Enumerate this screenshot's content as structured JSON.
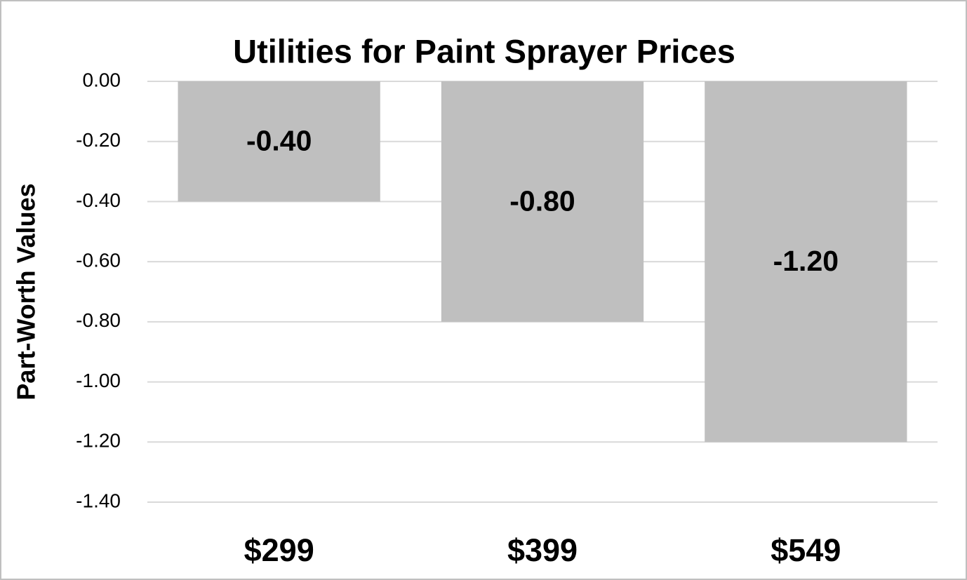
{
  "chart_data": {
    "type": "bar",
    "title": "Utilities for Paint Sprayer Prices",
    "y_label": "Part-Worth Values",
    "categories": [
      "$299",
      "$399",
      "$549"
    ],
    "values": [
      -0.4,
      -0.8,
      -1.2
    ],
    "value_labels": [
      "-0.40",
      "-0.80",
      "-1.20"
    ],
    "color": "#bfbfbf",
    "ylim": [
      -1.4,
      0
    ],
    "yticks": [
      {
        "value": 0,
        "label": "0.00"
      },
      {
        "value": -0.2,
        "label": "-0.20"
      },
      {
        "value": -0.4,
        "label": "-0.40"
      },
      {
        "value": -0.6,
        "label": "-0.60"
      },
      {
        "value": -0.8,
        "label": "-0.80"
      },
      {
        "value": -1.0,
        "label": "-1.00"
      },
      {
        "value": -1.2,
        "label": "-1.20"
      },
      {
        "value": -1.4,
        "label": "-1.40"
      }
    ],
    "grid": true
  }
}
